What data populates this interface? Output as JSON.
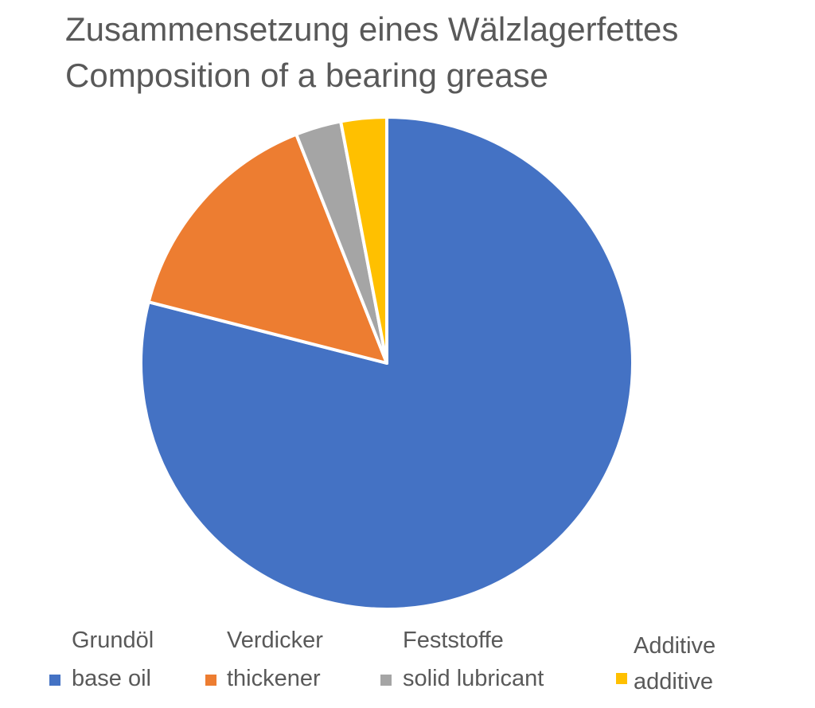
{
  "chart_data": {
    "type": "pie",
    "title": "Zusammensetzung eines Wälzlagerfettes",
    "subtitle": "Composition of a bearing grease",
    "start_angle_deg": 0,
    "direction": "clockwise",
    "slices": [
      {
        "label_de": "Grundöl",
        "label_en": "base oil",
        "value": 79,
        "color": "#4472C4"
      },
      {
        "label_de": "Verdicker",
        "label_en": "thickener",
        "value": 15,
        "color": "#ED7D31"
      },
      {
        "label_de": "Feststoffe",
        "label_en": "solid lubricant",
        "value": 3,
        "color": "#A5A5A5"
      },
      {
        "label_de": "Additive",
        "label_en": "additive",
        "value": 3,
        "color": "#FFC000"
      }
    ],
    "legend_position": "bottom",
    "separator_color": "#FFFFFF"
  }
}
